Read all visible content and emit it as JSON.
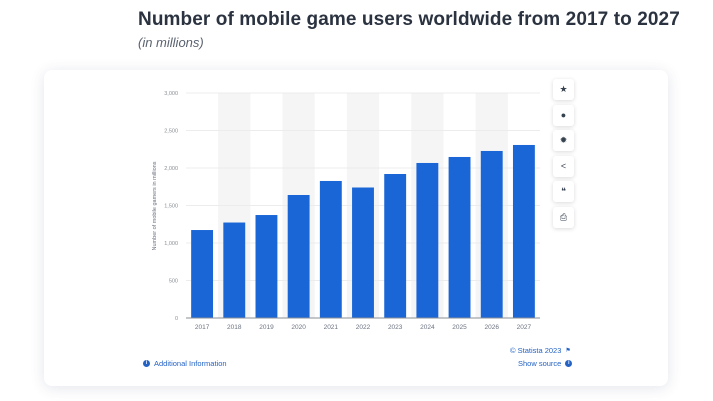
{
  "header": {
    "title": "Number of mobile game users worldwide from 2017 to 2027",
    "subtitle": "(in millions)"
  },
  "toolbar": [
    {
      "name": "favorite",
      "icon": "star-icon",
      "glyph": "★"
    },
    {
      "name": "notification",
      "icon": "bell-icon",
      "glyph": "●"
    },
    {
      "name": "settings",
      "icon": "gear-icon",
      "glyph": "✹"
    },
    {
      "name": "share",
      "icon": "share-icon",
      "glyph": "<"
    },
    {
      "name": "cite",
      "icon": "quote-icon",
      "glyph": "❝"
    },
    {
      "name": "print",
      "icon": "printer-icon",
      "glyph": "⎙"
    }
  ],
  "footer": {
    "additional_info": "Additional Information",
    "copyright": "© Statista 2023",
    "show_source": "Show source"
  },
  "colors": {
    "bar": "#1a66d6",
    "band": "#f5f5f5",
    "link": "#2463c4"
  },
  "chart_data": {
    "type": "bar",
    "title": "Number of mobile game users worldwide from 2017 to 2027",
    "subtitle": "(in millions)",
    "xlabel": "",
    "ylabel": "Number of mobile gamers in millions",
    "categories": [
      "2017",
      "2018",
      "2019",
      "2020",
      "2021",
      "2022",
      "2023",
      "2024",
      "2025",
      "2026",
      "2027"
    ],
    "values": [
      1173,
      1273,
      1373,
      1640,
      1827,
      1740,
      1920,
      2067,
      2147,
      2227,
      2307
    ],
    "ylim": [
      0,
      3000
    ],
    "yticks": [
      0,
      500,
      1000,
      1500,
      2000,
      2500,
      3000
    ],
    "ytick_labels": [
      "0",
      "500",
      "1,000",
      "1,500",
      "2,000",
      "2,500",
      "3,000"
    ],
    "grid": true,
    "legend": "none"
  }
}
